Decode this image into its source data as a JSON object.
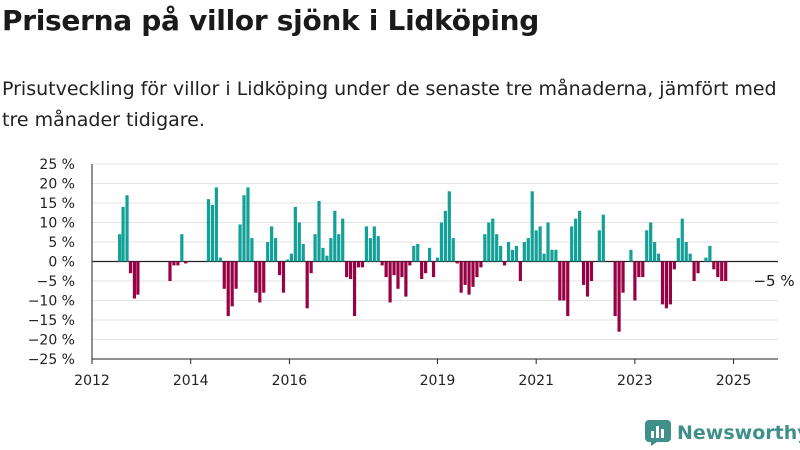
{
  "title": "Priserna på villor sjönk i Lidköping",
  "subtitle": "Prisutveckling för villor i Lidköping under de senaste tre månaderna, jämfört med tre månader tidigare.",
  "brand": {
    "name": "Newsworthy",
    "icon": "newsworthy-logo-icon"
  },
  "colors": {
    "positive": "#12a097",
    "negative": "#980143",
    "brand": "#3f8f8a"
  },
  "chart_data": {
    "type": "bar",
    "unit": "%",
    "ylim": [
      -25,
      25
    ],
    "yticks": [
      25,
      20,
      15,
      10,
      5,
      0,
      -5,
      -10,
      -15,
      -20,
      -25
    ],
    "ytick_labels": [
      "25 %",
      "20 %",
      "15 %",
      "10 %",
      "5 %",
      "0 %",
      "−5 %",
      "−10 %",
      "−15 %",
      "−20 %",
      "−25 %"
    ],
    "xlim": [
      2012,
      2025.9
    ],
    "xticks": [
      2012,
      2014,
      2016,
      2019,
      2021,
      2023,
      2025
    ],
    "xtick_labels": [
      "2012",
      "2014",
      "2016",
      "2019",
      "2021",
      "2023",
      "2025"
    ],
    "grid": "horizontal",
    "annotation": {
      "text": "−5 %",
      "x": 2025.2,
      "y": -5
    },
    "series": [
      {
        "values": [
          {
            "x": 2012.56,
            "y": 7
          },
          {
            "x": 2012.63,
            "y": 14
          },
          {
            "x": 2012.71,
            "y": 17
          },
          {
            "x": 2012.78,
            "y": -3
          },
          {
            "x": 2012.86,
            "y": -9.5
          },
          {
            "x": 2012.93,
            "y": -8.5
          },
          {
            "x": 2013.58,
            "y": -5
          },
          {
            "x": 2013.66,
            "y": -1
          },
          {
            "x": 2013.74,
            "y": -1
          },
          {
            "x": 2013.82,
            "y": 7
          },
          {
            "x": 2013.9,
            "y": -0.5
          },
          {
            "x": 2014.36,
            "y": 16
          },
          {
            "x": 2014.44,
            "y": 14.5
          },
          {
            "x": 2014.52,
            "y": 19
          },
          {
            "x": 2014.6,
            "y": 1
          },
          {
            "x": 2014.68,
            "y": -7
          },
          {
            "x": 2014.76,
            "y": -14
          },
          {
            "x": 2014.84,
            "y": -11.5
          },
          {
            "x": 2014.92,
            "y": -7
          },
          {
            "x": 2015.0,
            "y": 9.5
          },
          {
            "x": 2015.08,
            "y": 17
          },
          {
            "x": 2015.16,
            "y": 19
          },
          {
            "x": 2015.24,
            "y": 6
          },
          {
            "x": 2015.32,
            "y": -8
          },
          {
            "x": 2015.4,
            "y": -10.5
          },
          {
            "x": 2015.48,
            "y": -8
          },
          {
            "x": 2015.56,
            "y": 5
          },
          {
            "x": 2015.64,
            "y": 9
          },
          {
            "x": 2015.72,
            "y": 6
          },
          {
            "x": 2015.8,
            "y": -3.5
          },
          {
            "x": 2015.88,
            "y": -8
          },
          {
            "x": 2015.96,
            "y": 0.5
          },
          {
            "x": 2016.04,
            "y": 2
          },
          {
            "x": 2016.12,
            "y": 14
          },
          {
            "x": 2016.2,
            "y": 10
          },
          {
            "x": 2016.28,
            "y": 4.5
          },
          {
            "x": 2016.36,
            "y": -12
          },
          {
            "x": 2016.44,
            "y": -3
          },
          {
            "x": 2016.52,
            "y": 7
          },
          {
            "x": 2016.6,
            "y": 15.5
          },
          {
            "x": 2016.68,
            "y": 3.5
          },
          {
            "x": 2016.76,
            "y": 1.5
          },
          {
            "x": 2016.84,
            "y": 6
          },
          {
            "x": 2016.92,
            "y": 13
          },
          {
            "x": 2017.0,
            "y": 7
          },
          {
            "x": 2017.08,
            "y": 11
          },
          {
            "x": 2017.16,
            "y": -4
          },
          {
            "x": 2017.24,
            "y": -4.5
          },
          {
            "x": 2017.32,
            "y": -14
          },
          {
            "x": 2017.4,
            "y": -1.5
          },
          {
            "x": 2017.48,
            "y": -1.5
          },
          {
            "x": 2017.56,
            "y": 9
          },
          {
            "x": 2017.64,
            "y": 6
          },
          {
            "x": 2017.72,
            "y": 9
          },
          {
            "x": 2017.8,
            "y": 6.5
          },
          {
            "x": 2017.88,
            "y": -1
          },
          {
            "x": 2017.96,
            "y": -4
          },
          {
            "x": 2018.04,
            "y": -10.5
          },
          {
            "x": 2018.12,
            "y": -3.5
          },
          {
            "x": 2018.2,
            "y": -7
          },
          {
            "x": 2018.28,
            "y": -4
          },
          {
            "x": 2018.36,
            "y": -9
          },
          {
            "x": 2018.44,
            "y": -1
          },
          {
            "x": 2018.52,
            "y": 4
          },
          {
            "x": 2018.6,
            "y": 4.5
          },
          {
            "x": 2018.68,
            "y": -4.5
          },
          {
            "x": 2018.76,
            "y": -3
          },
          {
            "x": 2018.84,
            "y": 3.5
          },
          {
            "x": 2018.92,
            "y": -4
          },
          {
            "x": 2019.0,
            "y": 1
          },
          {
            "x": 2019.08,
            "y": 10
          },
          {
            "x": 2019.16,
            "y": 13
          },
          {
            "x": 2019.24,
            "y": 18
          },
          {
            "x": 2019.32,
            "y": 6
          },
          {
            "x": 2019.4,
            "y": -0.5
          },
          {
            "x": 2019.48,
            "y": -8
          },
          {
            "x": 2019.56,
            "y": -6
          },
          {
            "x": 2019.64,
            "y": -8.5
          },
          {
            "x": 2019.72,
            "y": -6.5
          },
          {
            "x": 2019.8,
            "y": -4
          },
          {
            "x": 2019.88,
            "y": -1.5
          },
          {
            "x": 2019.96,
            "y": 7
          },
          {
            "x": 2020.04,
            "y": 10
          },
          {
            "x": 2020.12,
            "y": 11
          },
          {
            "x": 2020.2,
            "y": 7
          },
          {
            "x": 2020.28,
            "y": 4
          },
          {
            "x": 2020.36,
            "y": -1
          },
          {
            "x": 2020.44,
            "y": 5
          },
          {
            "x": 2020.52,
            "y": 3
          },
          {
            "x": 2020.6,
            "y": 4
          },
          {
            "x": 2020.68,
            "y": -5
          },
          {
            "x": 2020.76,
            "y": 5
          },
          {
            "x": 2020.84,
            "y": 6
          },
          {
            "x": 2020.92,
            "y": 18
          },
          {
            "x": 2021.0,
            "y": 8
          },
          {
            "x": 2021.08,
            "y": 9
          },
          {
            "x": 2021.16,
            "y": 2
          },
          {
            "x": 2021.24,
            "y": 10
          },
          {
            "x": 2021.32,
            "y": 3
          },
          {
            "x": 2021.4,
            "y": 3
          },
          {
            "x": 2021.48,
            "y": -10
          },
          {
            "x": 2021.56,
            "y": -10
          },
          {
            "x": 2021.64,
            "y": -14
          },
          {
            "x": 2021.72,
            "y": 9
          },
          {
            "x": 2021.8,
            "y": 11
          },
          {
            "x": 2021.88,
            "y": 13
          },
          {
            "x": 2021.96,
            "y": -6
          },
          {
            "x": 2022.04,
            "y": -9
          },
          {
            "x": 2022.12,
            "y": -5
          },
          {
            "x": 2022.28,
            "y": 8
          },
          {
            "x": 2022.36,
            "y": 12
          },
          {
            "x": 2022.6,
            "y": -14
          },
          {
            "x": 2022.68,
            "y": -18
          },
          {
            "x": 2022.76,
            "y": -8
          },
          {
            "x": 2022.92,
            "y": 3
          },
          {
            "x": 2023.0,
            "y": -10
          },
          {
            "x": 2023.08,
            "y": -4
          },
          {
            "x": 2023.16,
            "y": -4
          },
          {
            "x": 2023.24,
            "y": 8
          },
          {
            "x": 2023.32,
            "y": 10
          },
          {
            "x": 2023.4,
            "y": 5
          },
          {
            "x": 2023.48,
            "y": 2
          },
          {
            "x": 2023.56,
            "y": -11
          },
          {
            "x": 2023.64,
            "y": -12
          },
          {
            "x": 2023.72,
            "y": -11
          },
          {
            "x": 2023.8,
            "y": -2
          },
          {
            "x": 2023.88,
            "y": 6
          },
          {
            "x": 2023.96,
            "y": 11
          },
          {
            "x": 2024.04,
            "y": 5
          },
          {
            "x": 2024.12,
            "y": 2
          },
          {
            "x": 2024.2,
            "y": -5
          },
          {
            "x": 2024.28,
            "y": -3
          },
          {
            "x": 2024.44,
            "y": 1
          },
          {
            "x": 2024.52,
            "y": 4
          },
          {
            "x": 2024.6,
            "y": -2
          },
          {
            "x": 2024.68,
            "y": -4
          },
          {
            "x": 2024.76,
            "y": -5
          },
          {
            "x": 2024.84,
            "y": -5
          }
        ]
      }
    ]
  }
}
